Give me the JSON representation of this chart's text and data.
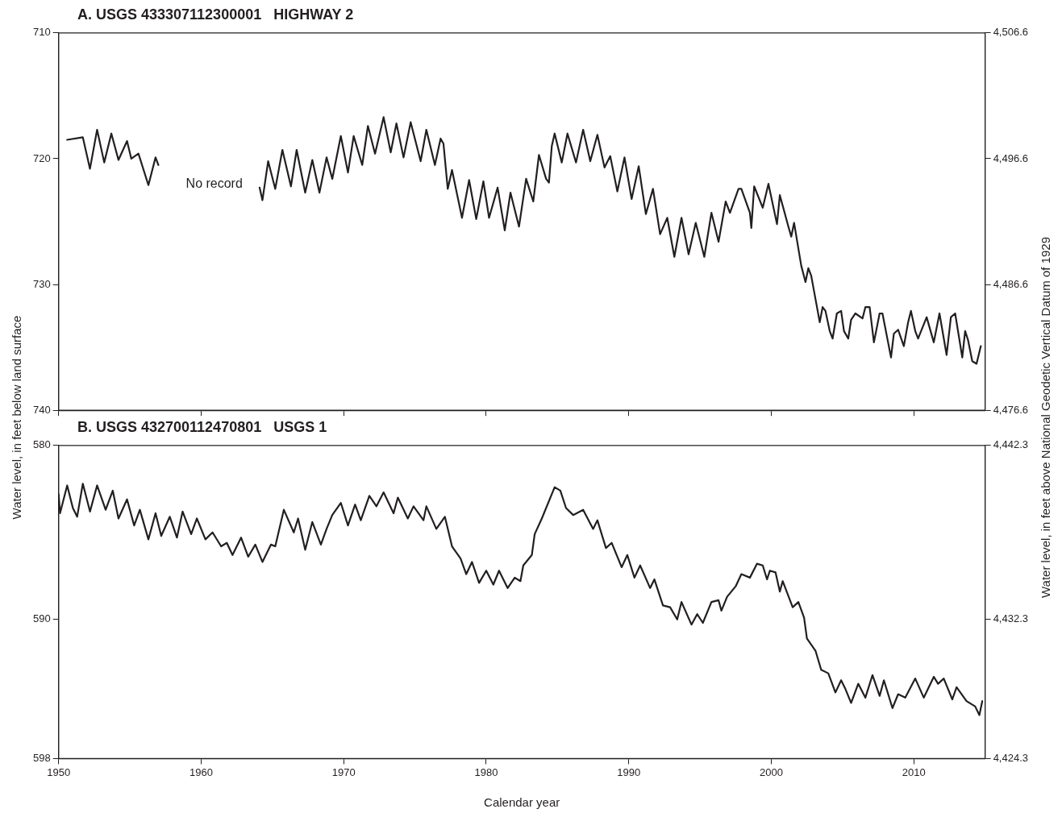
{
  "chart_data": [
    {
      "type": "line",
      "title": "A. USGS 433307112300001   HIGHWAY 2",
      "ylabel": "Water level, in feet below land surface",
      "y2label": "Water level, in feet above National Geodetic Vertical Datum of 1929",
      "tick_labels": "y",
      "xlim": [
        1950,
        2015
      ],
      "xticks": [
        1950,
        1960,
        1970,
        1980,
        1990,
        2000,
        2010
      ],
      "ylim": [
        740,
        710
      ],
      "yticks": [
        710,
        720,
        730,
        740
      ],
      "y2lim": [
        4476.6,
        4506.6
      ],
      "y2ticks": [
        {
          "value": 4506.6,
          "label": "4,506.6"
        },
        {
          "value": 4496.6,
          "label": "4,496.6"
        },
        {
          "value": 4486.6,
          "label": "4,486.6"
        },
        {
          "value": 4476.6,
          "label": "4,476.6"
        }
      ],
      "annotations": [
        "No record"
      ],
      "series": [
        {
          "color": "#231f20",
          "x": [
            1950.6,
            1951.7,
            1952.2,
            1952.7,
            1953.2,
            1953.7,
            1954.2,
            1954.8,
            1955.1,
            1955.6,
            1956.3,
            1956.8,
            1957.0,
            1960.5,
            1964.1,
            1964.3,
            1964.7,
            1965.2,
            1965.7,
            1966.3,
            1966.7,
            1967.3,
            1967.8,
            1968.3,
            1968.8,
            1969.2,
            1969.8,
            1970.3,
            1970.7,
            1971.3,
            1971.7,
            1972.2,
            1972.8,
            1973.3,
            1973.7,
            1974.2,
            1974.7,
            1975.4,
            1975.8,
            1976.4,
            1976.8,
            1977.0,
            1977.3,
            1977.6,
            1978.3,
            1978.8,
            1979.3,
            1979.8,
            1980.2,
            1980.8,
            1981.3,
            1981.7,
            1982.3,
            1982.8,
            1983.3,
            1983.7,
            1984.2,
            1984.4,
            1984.6,
            1984.8,
            1985.3,
            1985.7,
            1986.3,
            1986.8,
            1987.3,
            1987.8,
            1988.3,
            1988.7,
            1989.2,
            1989.7,
            1990.2,
            1990.7,
            1991.2,
            1991.7,
            1992.2,
            1992.7,
            1993.2,
            1993.7,
            1994.2,
            1994.7,
            1995.3,
            1995.8,
            1996.3,
            1996.8,
            1997.1,
            1997.7,
            1997.9,
            1998.5,
            1998.6,
            1998.8,
            1999.4,
            1999.8,
            2000.4,
            2000.6,
            2001.2,
            2001.4,
            2001.6,
            2002.1,
            2002.4,
            2002.6,
            2002.8,
            2003.4,
            2003.6,
            2003.8,
            2004.1,
            2004.3,
            2004.6,
            2004.9,
            2005.1,
            2005.4,
            2005.6,
            2005.9,
            2006.4,
            2006.6,
            2006.9,
            2007.2,
            2007.6,
            2007.8,
            2008.4,
            2008.6,
            2008.9,
            2009.3,
            2009.6,
            2009.8,
            2010.1,
            2010.3,
            2010.9,
            2011.4,
            2011.8,
            2012.3,
            2012.6,
            2012.9,
            2013.4,
            2013.6,
            2013.8,
            2014.1,
            2014.4,
            2014.7
          ],
          "values": [
            718.5,
            718.3,
            720.8,
            717.7,
            720.3,
            718.0,
            720.1,
            718.6,
            720.0,
            719.6,
            722.1,
            719.9,
            720.5,
            null,
            722.3,
            723.3,
            720.2,
            722.4,
            719.3,
            722.2,
            719.3,
            722.7,
            720.1,
            722.7,
            719.9,
            721.6,
            718.2,
            721.1,
            718.2,
            720.5,
            717.4,
            719.6,
            716.7,
            719.5,
            717.2,
            719.9,
            717.1,
            720.2,
            717.7,
            720.5,
            718.4,
            718.8,
            722.4,
            720.9,
            724.7,
            721.7,
            724.8,
            721.8,
            724.7,
            722.3,
            725.7,
            722.7,
            725.4,
            721.6,
            723.4,
            719.7,
            721.6,
            721.9,
            719.0,
            718.0,
            720.3,
            718.0,
            720.3,
            717.7,
            720.2,
            718.1,
            720.7,
            719.8,
            722.6,
            719.9,
            723.2,
            720.6,
            724.4,
            722.4,
            726.0,
            724.7,
            727.8,
            724.7,
            727.6,
            725.1,
            727.8,
            724.3,
            726.6,
            723.4,
            724.3,
            722.4,
            722.4,
            724.3,
            725.5,
            722.2,
            723.9,
            722.0,
            725.2,
            722.9,
            725.4,
            726.2,
            725.1,
            728.5,
            729.8,
            728.7,
            729.3,
            733.0,
            731.8,
            732.1,
            733.7,
            734.3,
            732.3,
            732.1,
            733.7,
            734.3,
            732.8,
            732.3,
            732.7,
            731.8,
            731.8,
            734.6,
            732.3,
            732.3,
            735.8,
            733.9,
            733.6,
            734.9,
            733.0,
            732.1,
            733.7,
            734.3,
            732.6,
            734.6,
            732.3,
            735.6,
            732.6,
            732.3,
            735.8,
            733.7,
            734.4,
            736.1,
            736.3,
            734.9
          ]
        }
      ]
    },
    {
      "type": "line",
      "title": "B. USGS 432700112470801   USGS 1",
      "xlabel": "Calendar year",
      "xlim": [
        1950,
        2015
      ],
      "xticks": [
        1950,
        1960,
        1970,
        1980,
        1990,
        2000,
        2010
      ],
      "ylim": [
        598,
        580
      ],
      "yticks": [
        580,
        590,
        598
      ],
      "y2lim": [
        4424.3,
        4442.3
      ],
      "y2ticks": [
        {
          "value": 4442.3,
          "label": "4,442.3"
        },
        {
          "value": 4432.3,
          "label": "4,432.3"
        },
        {
          "value": 4424.3,
          "label": "4,424.3"
        }
      ],
      "series": [
        {
          "color": "#231f20",
          "x": [
            1950.0,
            1950.1,
            1950.6,
            1951.0,
            1951.3,
            1951.7,
            1952.2,
            1952.7,
            1953.3,
            1953.8,
            1954.2,
            1954.8,
            1955.3,
            1955.7,
            1956.3,
            1956.8,
            1957.2,
            1957.8,
            1958.3,
            1958.7,
            1959.3,
            1959.7,
            1960.3,
            1960.8,
            1961.4,
            1961.8,
            1962.2,
            1962.8,
            1963.3,
            1963.8,
            1964.3,
            1964.9,
            1965.2,
            1965.8,
            1966.5,
            1966.8,
            1967.3,
            1967.8,
            1968.4,
            1968.8,
            1969.2,
            1969.8,
            1970.3,
            1970.8,
            1971.2,
            1971.8,
            1972.3,
            1972.8,
            1973.5,
            1973.8,
            1974.5,
            1974.9,
            1975.6,
            1975.8,
            1976.5,
            1977.1,
            1977.6,
            1978.2,
            1978.6,
            1979.0,
            1979.5,
            1980.0,
            1980.5,
            1980.9,
            1981.5,
            1982.0,
            1982.4,
            1982.6,
            1983.2,
            1983.4,
            1983.9,
            1984.8,
            1985.2,
            1985.6,
            1986.1,
            1986.8,
            1987.5,
            1987.8,
            1988.4,
            1988.8,
            1989.5,
            1989.9,
            1990.4,
            1990.8,
            1991.5,
            1991.8,
            1992.4,
            1992.9,
            1993.4,
            1993.7,
            1994.4,
            1994.8,
            1995.2,
            1995.8,
            1996.3,
            1996.5,
            1996.9,
            1997.5,
            1997.9,
            1998.5,
            1999.0,
            1999.4,
            1999.7,
            1999.9,
            2000.3,
            2000.6,
            2000.8,
            2001.5,
            2001.9,
            2002.3,
            2002.5,
            2003.1,
            2003.5,
            2004.0,
            2004.5,
            2004.9,
            2005.2,
            2005.6,
            2006.1,
            2006.6,
            2007.1,
            2007.6,
            2007.9,
            2008.5,
            2008.9,
            2009.4,
            2010.1,
            2010.7,
            2011.4,
            2011.7,
            2012.1,
            2012.7,
            2013.0,
            2013.7,
            2014.3,
            2014.6,
            2014.8
          ],
          "values": [
            582.8,
            583.9,
            582.3,
            583.6,
            584.1,
            582.2,
            583.8,
            582.3,
            583.7,
            582.6,
            584.2,
            583.1,
            584.6,
            583.7,
            585.4,
            583.9,
            585.2,
            584.1,
            585.3,
            583.8,
            585.1,
            584.2,
            585.4,
            585.0,
            585.8,
            585.6,
            586.3,
            585.3,
            586.4,
            585.7,
            586.7,
            585.7,
            585.8,
            583.7,
            585.0,
            584.2,
            586.0,
            584.4,
            585.7,
            584.8,
            584.0,
            583.3,
            584.6,
            583.4,
            584.3,
            582.9,
            583.5,
            582.7,
            583.9,
            583.0,
            584.2,
            583.5,
            584.3,
            583.5,
            584.8,
            584.1,
            585.8,
            586.5,
            587.4,
            586.7,
            587.9,
            587.2,
            588.0,
            587.2,
            588.2,
            587.6,
            587.8,
            586.9,
            586.3,
            585.1,
            584.2,
            582.4,
            582.6,
            583.6,
            584.0,
            583.7,
            584.8,
            584.3,
            585.9,
            585.6,
            587.0,
            586.3,
            587.6,
            586.9,
            588.2,
            587.7,
            589.2,
            589.3,
            590.0,
            589.0,
            590.3,
            589.7,
            590.2,
            589.0,
            588.9,
            589.5,
            588.7,
            588.1,
            587.4,
            587.6,
            586.8,
            586.9,
            587.7,
            587.2,
            587.3,
            588.4,
            587.8,
            589.3,
            589.0,
            589.9,
            591.1,
            591.8,
            592.9,
            593.1,
            594.2,
            593.5,
            594.0,
            594.8,
            593.7,
            594.5,
            593.2,
            594.4,
            593.5,
            595.1,
            594.3,
            594.5,
            593.4,
            594.5,
            593.3,
            593.7,
            593.4,
            594.6,
            593.9,
            594.7,
            595.0,
            595.5,
            594.7
          ]
        }
      ]
    }
  ]
}
